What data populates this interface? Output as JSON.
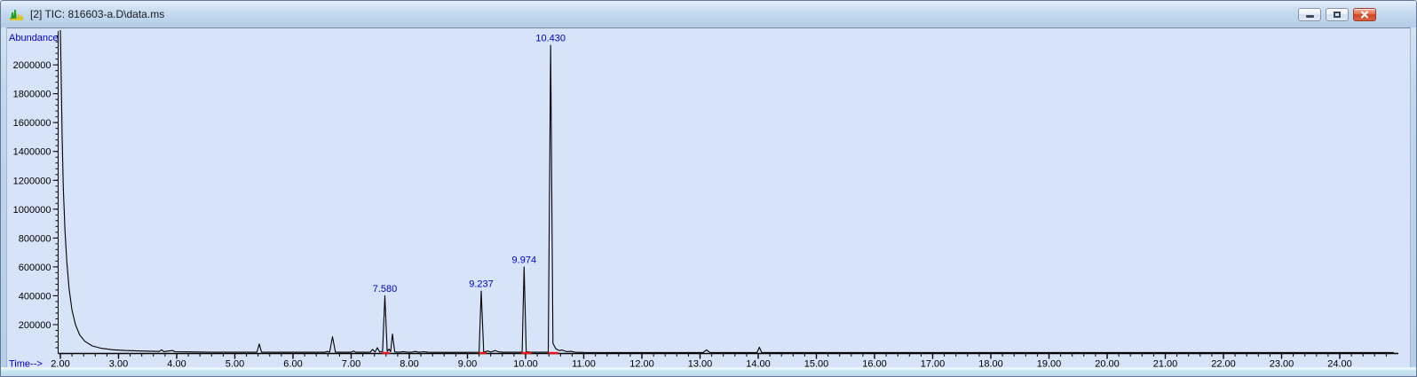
{
  "window": {
    "title": "[2] TIC: 816603-a.D\\data.ms",
    "buttons": {
      "minimize": "Minimize",
      "maximize": "Maximize",
      "close": "Close"
    }
  },
  "icons": {
    "titlebar": "chromatogram-icon",
    "minimize": "minimize-icon",
    "maximize": "maximize-icon",
    "close": "close-icon"
  },
  "colors": {
    "plot_background": "#d6e3f8",
    "trace": "#000000",
    "axis_label": "#0000cc",
    "peak_label": "#0000cc",
    "tick_label": "#000000",
    "integration_mark": "#ee1111",
    "close_button": "#cf4524"
  },
  "chart_data": {
    "type": "line",
    "title": "TIC: 816603-a.D\\data.ms",
    "xlabel": "Time-->",
    "ylabel": "Abundance",
    "xlim": [
      2.0,
      24.97
    ],
    "ylim": [
      0,
      2240000
    ],
    "grid": false,
    "x_major_tick_step": 1.0,
    "x_minor_tick_step": 0.2,
    "y_major_tick_step": 200000,
    "y_minor_tick_step": 40000,
    "x_tick_labels": [
      "2.00",
      "3.00",
      "4.00",
      "5.00",
      "6.00",
      "7.00",
      "8.00",
      "9.00",
      "10.00",
      "11.00",
      "12.00",
      "13.00",
      "14.00",
      "15.00",
      "16.00",
      "17.00",
      "18.00",
      "19.00",
      "20.00",
      "21.00",
      "22.00",
      "23.00",
      "24.00"
    ],
    "y_tick_labels": [
      "200000",
      "400000",
      "600000",
      "800000",
      "1000000",
      "1200000",
      "1400000",
      "1600000",
      "1800000",
      "2000000"
    ],
    "peak_labels": [
      {
        "label": "7.580",
        "time": 7.58,
        "value": 400000
      },
      {
        "label": "9.237",
        "time": 9.237,
        "value": 432000
      },
      {
        "label": "9.974",
        "time": 9.974,
        "value": 600000
      },
      {
        "label": "10.430",
        "time": 10.43,
        "value": 2135000
      }
    ],
    "integration_marks": [
      {
        "from": 7.53,
        "to": 7.66
      },
      {
        "from": 9.2,
        "to": 9.33
      },
      {
        "from": 9.93,
        "to": 10.1
      },
      {
        "from": 10.39,
        "to": 10.56
      }
    ],
    "series": [
      {
        "name": "TIC",
        "color": "#000000",
        "points": [
          [
            2.0,
            2300000
          ],
          [
            2.01,
            2000000
          ],
          [
            2.03,
            1500000
          ],
          [
            2.05,
            1150000
          ],
          [
            2.08,
            850000
          ],
          [
            2.11,
            640000
          ],
          [
            2.15,
            450000
          ],
          [
            2.2,
            300000
          ],
          [
            2.26,
            200000
          ],
          [
            2.33,
            130000
          ],
          [
            2.42,
            85000
          ],
          [
            2.55,
            52000
          ],
          [
            2.7,
            36000
          ],
          [
            2.9,
            26000
          ],
          [
            3.1,
            21000
          ],
          [
            3.4,
            17000
          ],
          [
            3.7,
            14000
          ],
          [
            3.74,
            26000
          ],
          [
            3.78,
            13000
          ],
          [
            3.93,
            21000
          ],
          [
            3.97,
            12000
          ],
          [
            4.2,
            11000
          ],
          [
            4.6,
            9500
          ],
          [
            5.0,
            9000
          ],
          [
            5.38,
            9000
          ],
          [
            5.42,
            66000
          ],
          [
            5.46,
            9500
          ],
          [
            5.8,
            8500
          ],
          [
            6.55,
            8500
          ],
          [
            6.59,
            15000
          ],
          [
            6.63,
            9000
          ],
          [
            6.68,
            116000
          ],
          [
            6.73,
            9500
          ],
          [
            7.0,
            8500
          ],
          [
            7.04,
            17000
          ],
          [
            7.08,
            8500
          ],
          [
            7.33,
            9000
          ],
          [
            7.37,
            28000
          ],
          [
            7.41,
            10000
          ],
          [
            7.45,
            40000
          ],
          [
            7.49,
            11000
          ],
          [
            7.54,
            14000
          ],
          [
            7.58,
            400000
          ],
          [
            7.62,
            15000
          ],
          [
            7.65,
            30000
          ],
          [
            7.68,
            13000
          ],
          [
            7.71,
            135000
          ],
          [
            7.75,
            11000
          ],
          [
            7.82,
            9000
          ],
          [
            7.9,
            13000
          ],
          [
            7.96,
            9000
          ],
          [
            8.05,
            10000
          ],
          [
            8.1,
            14000
          ],
          [
            8.16,
            9000
          ],
          [
            8.25,
            12000
          ],
          [
            8.32,
            8500
          ],
          [
            8.6,
            8000
          ],
          [
            9.0,
            8000
          ],
          [
            9.2,
            9000
          ],
          [
            9.237,
            432000
          ],
          [
            9.28,
            10000
          ],
          [
            9.35,
            17000
          ],
          [
            9.4,
            10000
          ],
          [
            9.48,
            20000
          ],
          [
            9.53,
            12000
          ],
          [
            9.6,
            8500
          ],
          [
            9.9,
            8500
          ],
          [
            9.94,
            12000
          ],
          [
            9.974,
            600000
          ],
          [
            10.01,
            12000
          ],
          [
            10.1,
            8500
          ],
          [
            10.39,
            10000
          ],
          [
            10.43,
            2135000
          ],
          [
            10.47,
            70000
          ],
          [
            10.52,
            32000
          ],
          [
            10.58,
            20000
          ],
          [
            10.63,
            24000
          ],
          [
            10.7,
            13000
          ],
          [
            10.78,
            15000
          ],
          [
            10.85,
            9000
          ],
          [
            11.0,
            7500
          ],
          [
            11.5,
            7000
          ],
          [
            12.0,
            7000
          ],
          [
            13.05,
            7000
          ],
          [
            13.11,
            25000
          ],
          [
            13.17,
            7000
          ],
          [
            13.6,
            6500
          ],
          [
            13.98,
            7000
          ],
          [
            14.02,
            43000
          ],
          [
            14.06,
            7000
          ],
          [
            14.5,
            6500
          ],
          [
            15.5,
            6500
          ],
          [
            17.0,
            6500
          ],
          [
            18.5,
            6500
          ],
          [
            20.0,
            6500
          ],
          [
            21.5,
            6500
          ],
          [
            23.0,
            6500
          ],
          [
            24.5,
            6500
          ],
          [
            24.93,
            6500
          ]
        ]
      }
    ]
  }
}
